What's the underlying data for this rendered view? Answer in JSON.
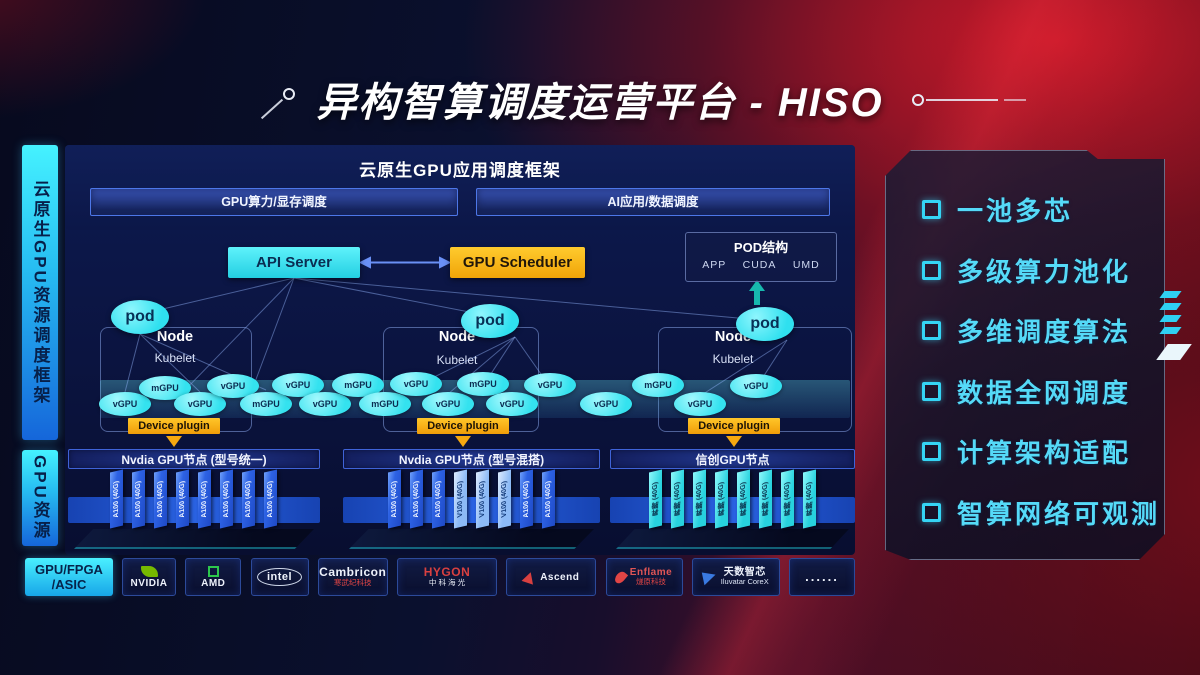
{
  "title": "异构智算调度运营平台 - HISO",
  "sidebar": {
    "resource_framework": "云原生GPU资源调度框架",
    "gpu_resources": "GPU资源"
  },
  "framework": {
    "title": "云原生GPU应用调度框架",
    "bars": [
      "GPU算力/显存调度",
      "AI应用/数据调度"
    ]
  },
  "cluster": {
    "api_server": "API Server",
    "gpu_scheduler": "GPU Scheduler",
    "pod_struct": {
      "title": "POD结构",
      "items": [
        "APP",
        "CUDA",
        "UMD"
      ]
    },
    "nodes": [
      {
        "pod": "pod",
        "label": "Node",
        "agent": "Kubelet",
        "plugin": "Device plugin"
      },
      {
        "pod": "pod",
        "label": "Node",
        "agent": "Kubelet",
        "plugin": "Device plugin"
      },
      {
        "pod": "pod",
        "label": "Node",
        "agent": "Kubelet",
        "plugin": "Device plugin"
      }
    ],
    "gpu_units": [
      "vGPU",
      "mGPU",
      "vGPU",
      "vGPU",
      "mGPU",
      "vGPU",
      "vGPU",
      "mGPU",
      "mGPU",
      "vGPU",
      "vGPU",
      "mGPU",
      "vGPU",
      "vGPU",
      "vGPU",
      "mGPU",
      "vGPU",
      "vGPU"
    ]
  },
  "gpu_groups": [
    {
      "header": "Nvdia GPU节点 (型号统一)",
      "cards": [
        {
          "label": "A100 (40G)",
          "variant": "dark"
        },
        {
          "label": "A100 (40G)",
          "variant": "dark"
        },
        {
          "label": "A100 (40G)",
          "variant": "dark"
        },
        {
          "label": "A100 (40G)",
          "variant": "dark"
        },
        {
          "label": "A100 (40G)",
          "variant": "dark"
        },
        {
          "label": "A100 (40G)",
          "variant": "dark"
        },
        {
          "label": "A100 (40G)",
          "variant": "dark"
        },
        {
          "label": "A100 (40G)",
          "variant": "dark"
        }
      ]
    },
    {
      "header": "Nvdia GPU节点 (型号混搭)",
      "cards": [
        {
          "label": "A100 (40G)",
          "variant": "dark"
        },
        {
          "label": "A100 (40G)",
          "variant": "dark"
        },
        {
          "label": "A100 (40G)",
          "variant": "dark"
        },
        {
          "label": "V100 (40G)",
          "variant": "light"
        },
        {
          "label": "V100 (40G)",
          "variant": "light"
        },
        {
          "label": "V100 (40G)",
          "variant": "light"
        },
        {
          "label": "A100 (40G)",
          "variant": "dark"
        },
        {
          "label": "A100 (40G)",
          "variant": "dark"
        }
      ]
    },
    {
      "header": "信创GPU节点",
      "cards": [
        {
          "label": "昇腾 (40G)",
          "variant": "cyan"
        },
        {
          "label": "昇腾 (40G)",
          "variant": "cyan"
        },
        {
          "label": "昇腾 (40G)",
          "variant": "cyan"
        },
        {
          "label": "昇腾 (40G)",
          "variant": "cyan"
        },
        {
          "label": "昇腾 (40G)",
          "variant": "cyan"
        },
        {
          "label": "昇腾 (40G)",
          "variant": "cyan"
        },
        {
          "label": "昇腾 (40G)",
          "variant": "cyan"
        },
        {
          "label": "昇腾 (40G)",
          "variant": "cyan"
        }
      ]
    }
  ],
  "vendors": {
    "label_line1": "GPU/FPGA",
    "label_line2": "/ASIC",
    "items": [
      {
        "name": "NVIDIA",
        "icon": "nvidia-logo",
        "layout": "stack",
        "accent": "#76b900"
      },
      {
        "name": "AMD",
        "icon": "amd-logo",
        "layout": "stack",
        "accent": "#2dc84d"
      },
      {
        "name": "intel",
        "layout": "oval",
        "accent": "#e8ecf5"
      },
      {
        "name": "Cambricon",
        "sub": "寒武纪科技",
        "layout": "textstack",
        "accent": "#e04545"
      },
      {
        "name": "HYGON",
        "sub": "中 科 海 光",
        "layout": "textstack",
        "accent": "#e8ecf5",
        "name_color": "#d84040",
        "sub_color": "#e8ecf5"
      },
      {
        "name": "Ascend",
        "icon": "ascend-logo",
        "layout": "row",
        "accent": "#d84040"
      },
      {
        "name": "Enflame",
        "sub": "燧原科技",
        "icon": "enflame-logo",
        "layout": "row",
        "accent": "#e04545",
        "name_color": "#e05555"
      },
      {
        "name": "天数智芯",
        "sub": "Iluvatar CoreX",
        "icon": "iluvatar-logo",
        "layout": "row",
        "accent": "#3a7ae0",
        "sub_color": "#dce4f5"
      },
      {
        "name": "......",
        "layout": "dots",
        "accent": "#e8ecf5"
      }
    ]
  },
  "features": {
    "items": [
      "一池多芯",
      "多级算力池化",
      "多维调度算法",
      "数据全网调度",
      "计算架构适配",
      "智算网络可观测"
    ]
  },
  "colors": {
    "cyan_accent": "#3ae8f5",
    "yellow_accent": "#f6b513",
    "panel_blue": "#0d1a50",
    "feature_cyan": "#55daf8",
    "red_bg": "#8c1020"
  }
}
